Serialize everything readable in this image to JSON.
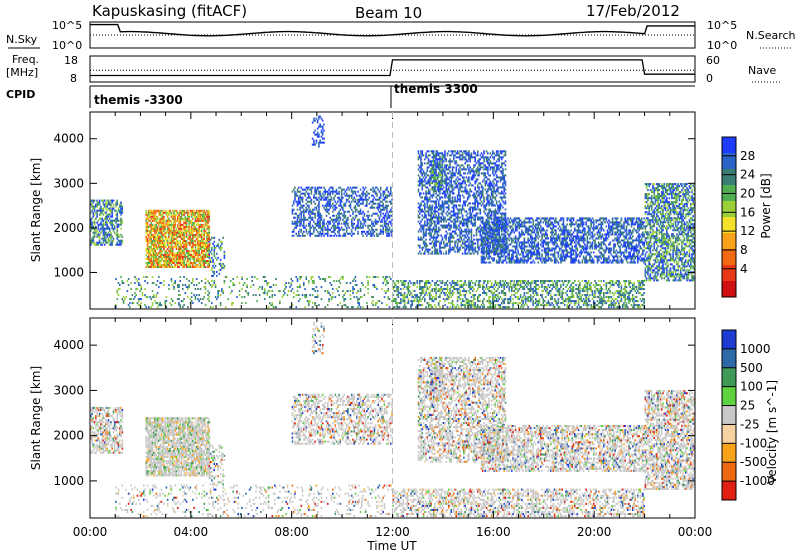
{
  "header": {
    "station": "Kapuskasing (fitACF)",
    "beam": "Beam 10",
    "date": "17/Feb/2012"
  },
  "strips": {
    "nsky_label": "N.Sky",
    "nsky_ticks": [
      "10^5",
      "10^0"
    ],
    "nsearch_label": "N.Search",
    "nsearch_ticks": [
      "10^5",
      "10^0"
    ],
    "freq_label_1": "Freq.",
    "freq_label_2": "[MHz]",
    "freq_ticks": [
      "18",
      "8"
    ],
    "nave_label": "Nave",
    "nave_ticks": [
      "60",
      "0"
    ],
    "cpid_label": "CPID",
    "cpid_segments": [
      "themis -3300",
      "themis 3300"
    ]
  },
  "chart_data": [
    {
      "type": "heatmap",
      "parameter": "power",
      "ylabel": "Slant Range [km]",
      "xlabel": "Time UT",
      "xticks": [
        "00:00",
        "04:00",
        "08:00",
        "12:00",
        "16:00",
        "20:00",
        "00:00"
      ],
      "xlim_hours": [
        0,
        24
      ],
      "yticks": [
        1000,
        2000,
        3000,
        4000
      ],
      "ylim": [
        180,
        4600
      ],
      "colorbar": {
        "label": "Power [dB]",
        "ticks": [
          "4",
          "8",
          "12",
          "16",
          "20",
          "24",
          "28"
        ],
        "colors": [
          "#1e3cff",
          "#2b64c8",
          "#3a7d72",
          "#4fae50",
          "#9ccf3a",
          "#f4e12a",
          "#f8a21a",
          "#ef6a12",
          "#e8381a",
          "#d01010"
        ]
      }
    },
    {
      "type": "heatmap",
      "parameter": "velocity",
      "ylabel": "Slant Range [km]",
      "xlabel": "Time UT",
      "xticks": [
        "00:00",
        "04:00",
        "08:00",
        "12:00",
        "16:00",
        "20:00",
        "00:00"
      ],
      "xlim_hours": [
        0,
        24
      ],
      "yticks": [
        1000,
        2000,
        3000,
        4000
      ],
      "ylim": [
        180,
        4600
      ],
      "colorbar": {
        "label": "Velocity [m s^-1]",
        "ticks": [
          "1000",
          "500",
          "100",
          "25",
          "-25",
          "-100",
          "-500",
          "-1000"
        ],
        "colors": [
          "#1e3cd2",
          "#2e6aa8",
          "#3f9a58",
          "#5fd240",
          "#c8c8c8",
          "#f5d2a0",
          "#f8a21a",
          "#ee6a12",
          "#e02010"
        ]
      }
    }
  ],
  "footer": {
    "xlabel": "Time UT"
  }
}
